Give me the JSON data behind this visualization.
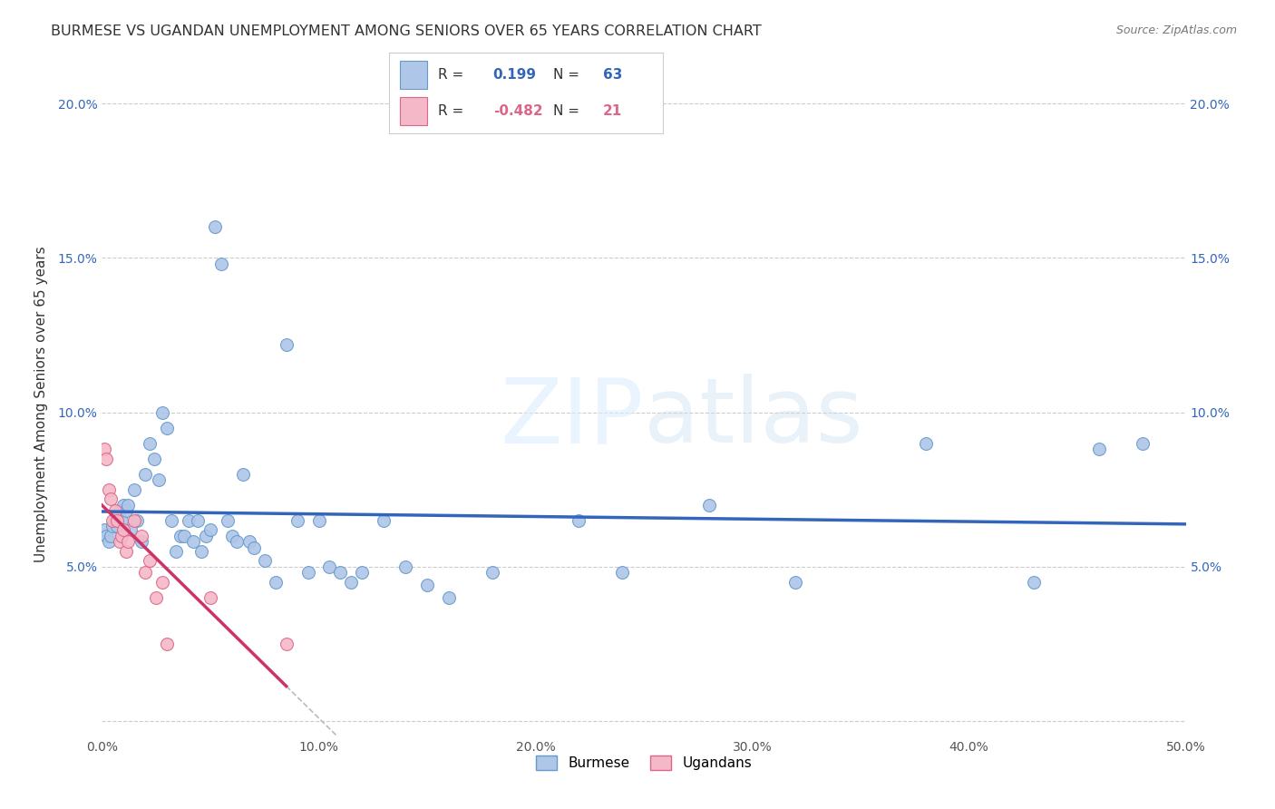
{
  "title": "BURMESE VS UGANDAN UNEMPLOYMENT AMONG SENIORS OVER 65 YEARS CORRELATION CHART",
  "source": "Source: ZipAtlas.com",
  "ylabel": "Unemployment Among Seniors over 65 years",
  "xlim": [
    0.0,
    0.5
  ],
  "ylim": [
    -0.005,
    0.21
  ],
  "background_color": "#ffffff",
  "grid_color": "#cccccc",
  "watermark_zip": "ZIP",
  "watermark_atlas": "atlas",
  "burmese_color": "#aec6e8",
  "ugandan_color": "#f5b8c8",
  "burmese_edge_color": "#6699cc",
  "ugandan_edge_color": "#dd6688",
  "burmese_line_color": "#3366bb",
  "ugandan_line_color": "#cc3366",
  "ugandan_dash_color": "#bbbbbb",
  "right_tick_color": "#3366bb",
  "left_tick_color": "#3366bb",
  "R_burmese": "0.199",
  "N_burmese": "63",
  "R_ugandan": "-0.482",
  "N_ugandan": "21",
  "burmese_x": [
    0.001,
    0.002,
    0.003,
    0.004,
    0.005,
    0.006,
    0.007,
    0.008,
    0.009,
    0.01,
    0.011,
    0.012,
    0.013,
    0.015,
    0.016,
    0.018,
    0.02,
    0.022,
    0.024,
    0.026,
    0.028,
    0.03,
    0.032,
    0.034,
    0.036,
    0.038,
    0.04,
    0.042,
    0.044,
    0.046,
    0.048,
    0.05,
    0.052,
    0.055,
    0.058,
    0.06,
    0.062,
    0.065,
    0.068,
    0.07,
    0.075,
    0.08,
    0.085,
    0.09,
    0.095,
    0.1,
    0.105,
    0.11,
    0.115,
    0.12,
    0.13,
    0.14,
    0.15,
    0.16,
    0.18,
    0.22,
    0.24,
    0.28,
    0.32,
    0.38,
    0.43,
    0.46,
    0.48
  ],
  "burmese_y": [
    0.062,
    0.06,
    0.058,
    0.06,
    0.063,
    0.065,
    0.063,
    0.068,
    0.065,
    0.07,
    0.068,
    0.07,
    0.062,
    0.075,
    0.065,
    0.058,
    0.08,
    0.09,
    0.085,
    0.078,
    0.1,
    0.095,
    0.065,
    0.055,
    0.06,
    0.06,
    0.065,
    0.058,
    0.065,
    0.055,
    0.06,
    0.062,
    0.16,
    0.148,
    0.065,
    0.06,
    0.058,
    0.08,
    0.058,
    0.056,
    0.052,
    0.045,
    0.122,
    0.065,
    0.048,
    0.065,
    0.05,
    0.048,
    0.045,
    0.048,
    0.065,
    0.05,
    0.044,
    0.04,
    0.048,
    0.065,
    0.048,
    0.07,
    0.045,
    0.09,
    0.045,
    0.088,
    0.09
  ],
  "ugandan_x": [
    0.001,
    0.002,
    0.003,
    0.004,
    0.005,
    0.006,
    0.007,
    0.008,
    0.009,
    0.01,
    0.011,
    0.012,
    0.015,
    0.018,
    0.02,
    0.022,
    0.025,
    0.028,
    0.03,
    0.05,
    0.085
  ],
  "ugandan_y": [
    0.088,
    0.085,
    0.075,
    0.072,
    0.065,
    0.068,
    0.065,
    0.058,
    0.06,
    0.062,
    0.055,
    0.058,
    0.065,
    0.06,
    0.048,
    0.052,
    0.04,
    0.045,
    0.025,
    0.04,
    0.025
  ]
}
